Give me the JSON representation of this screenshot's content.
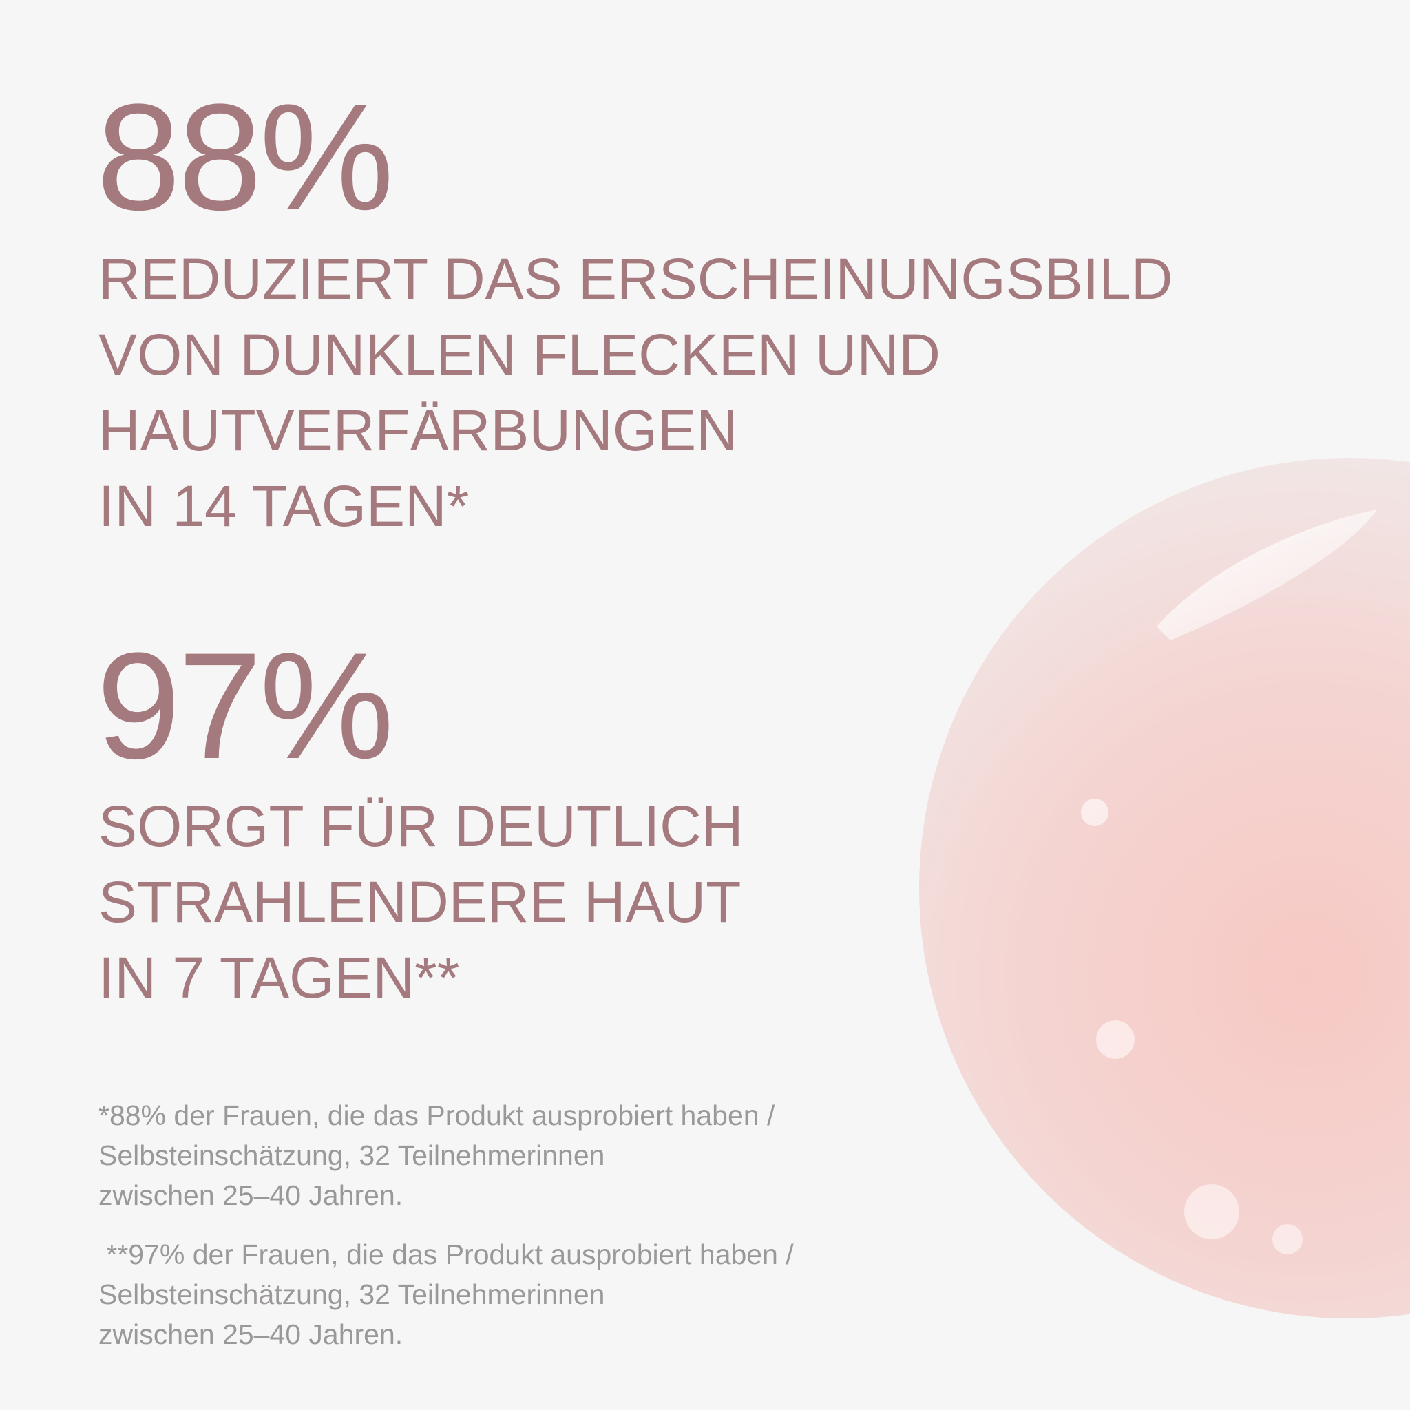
{
  "stats": [
    {
      "figure": "88%",
      "lines": [
        "REDUZIERT DAS ERSCHEINUNGSBILD",
        "VON DUNKLEN FLECKEN UND",
        "HAUTVERFÄRBUNGEN",
        "IN 14 TAGEN*"
      ]
    },
    {
      "figure": "97%",
      "lines": [
        "SORGT FÜR DEUTLICH",
        "STRAHLENDERE HAUT",
        "IN 7 TAGEN**"
      ]
    }
  ],
  "footnotes": [
    [
      "*88% der Frauen, die das Produkt ausprobiert haben /",
      "Selbsteinschätzung, 32 Teilnehmerinnen",
      "zwischen 25–40 Jahren."
    ],
    [
      " **97% der Frauen, die das Produkt ausprobiert haben /",
      "Selbsteinschätzung, 32 Teilnehmerinnen",
      "zwischen 25–40 Jahren."
    ]
  ]
}
